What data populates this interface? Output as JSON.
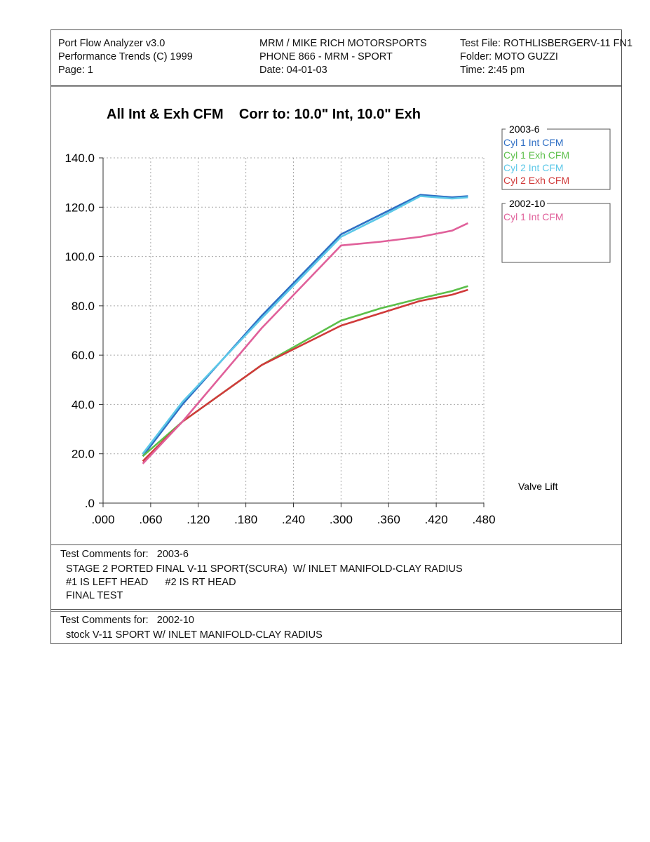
{
  "header": {
    "left": [
      "Port Flow Analyzer v3.0",
      "Performance Trends (C) 1999",
      "Page:  1"
    ],
    "center": [
      "MRM / MIKE RICH MOTORSPORTS",
      "PHONE 866 - MRM - SPORT",
      "Date: 04-01-03"
    ],
    "right": [
      "Test File: ROTHLISBERGERV-11 FN1",
      "Folder: MOTO GUZZI",
      "Time: 2:45 pm"
    ]
  },
  "chart_data": {
    "type": "line",
    "title": "All Int & Exh CFM    Corr to: 10.0\" Int, 10.0\" Exh",
    "xlabel": "Valve Lift",
    "ylabel": "",
    "xlim": [
      0,
      0.48
    ],
    "ylim": [
      0,
      140
    ],
    "x_ticks": [
      ".000",
      ".060",
      ".120",
      ".180",
      ".240",
      ".300",
      ".360",
      ".420",
      ".480"
    ],
    "y_ticks": [
      ".0",
      "20.0",
      "40.0",
      "60.0",
      "80.0",
      "100.0",
      "120.0",
      "140.0"
    ],
    "grid": true,
    "legend_placement": "right",
    "legend_groups": [
      {
        "name": "2003-6",
        "entries": [
          "Cyl 1 Int CFM",
          "Cyl 1 Exh CFM",
          "Cyl 2 Int CFM",
          "Cyl 2 Exh CFM"
        ]
      },
      {
        "name": "2002-10",
        "entries": [
          "Cyl 1 Int CFM"
        ]
      }
    ],
    "series": [
      {
        "group": "2003-6",
        "name": "Cyl 1 Int CFM",
        "color": "#2f6fc4",
        "x": [
          0.05,
          0.1,
          0.2,
          0.3,
          0.35,
          0.4,
          0.44,
          0.46
        ],
        "y": [
          19,
          40,
          76,
          109,
          117,
          125,
          124,
          124.5
        ]
      },
      {
        "group": "2003-6",
        "name": "Cyl 1 Exh CFM",
        "color": "#5cbf4a",
        "x": [
          0.05,
          0.1,
          0.2,
          0.3,
          0.35,
          0.4,
          0.44,
          0.46
        ],
        "y": [
          19,
          33,
          56,
          74,
          79,
          83,
          86,
          88
        ]
      },
      {
        "group": "2003-6",
        "name": "Cyl 2 Int CFM",
        "color": "#5cc8e8",
        "x": [
          0.05,
          0.1,
          0.2,
          0.3,
          0.35,
          0.4,
          0.44,
          0.46
        ],
        "y": [
          20,
          41,
          75,
          108,
          116,
          124.5,
          123.5,
          124
        ]
      },
      {
        "group": "2003-6",
        "name": "Cyl 2 Exh CFM",
        "color": "#d03a3a",
        "x": [
          0.05,
          0.1,
          0.2,
          0.3,
          0.35,
          0.4,
          0.44,
          0.46
        ],
        "y": [
          17,
          33,
          56,
          72,
          77,
          82,
          84.5,
          86.5
        ]
      },
      {
        "group": "2002-10",
        "name": "Cyl 1 Int CFM",
        "color": "#e0609a",
        "x": [
          0.05,
          0.1,
          0.2,
          0.3,
          0.35,
          0.4,
          0.44,
          0.46
        ],
        "y": [
          16,
          33,
          71,
          104.5,
          106,
          108,
          110.5,
          113.5
        ]
      }
    ]
  },
  "comments": {
    "block1": {
      "heading": "Test Comments for:   2003-6",
      "lines": [
        "STAGE 2 PORTED FINAL V-11 SPORT(SCURA)  W/ INLET MANIFOLD-CLAY RADIUS",
        "#1 IS LEFT HEAD      #2 IS RT HEAD",
        "FINAL TEST"
      ]
    },
    "block2": {
      "heading": "Test Comments for:   2002-10",
      "lines": [
        "stock V-11 SPORT W/ INLET MANIFOLD-CLAY RADIUS"
      ]
    }
  }
}
